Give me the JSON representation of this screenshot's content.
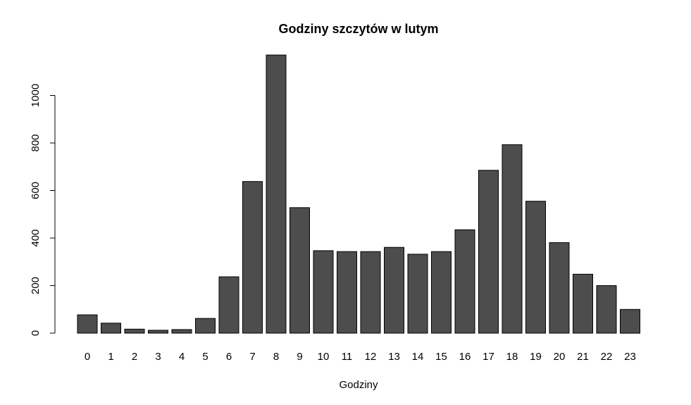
{
  "chart_data": {
    "type": "bar",
    "title": "Godziny szczytów w lutym",
    "xlabel": "Godziny",
    "ylabel": "",
    "categories": [
      "0",
      "1",
      "2",
      "3",
      "4",
      "5",
      "6",
      "7",
      "8",
      "9",
      "10",
      "11",
      "12",
      "13",
      "14",
      "15",
      "16",
      "17",
      "18",
      "19",
      "20",
      "21",
      "22",
      "23"
    ],
    "values": [
      77,
      42,
      17,
      12,
      15,
      62,
      237,
      638,
      1170,
      528,
      347,
      343,
      343,
      361,
      332,
      343,
      435,
      685,
      793,
      555,
      381,
      248,
      200,
      100
    ],
    "ylim": [
      0,
      1200
    ],
    "yticks": [
      0,
      200,
      400,
      600,
      800,
      1000
    ],
    "ytick_labels": [
      "0",
      "200",
      "400",
      "600",
      "800",
      "1000"
    ],
    "grid": false,
    "legend": "none",
    "bar_color": "#4d4d4d",
    "border_color": "#000000"
  }
}
